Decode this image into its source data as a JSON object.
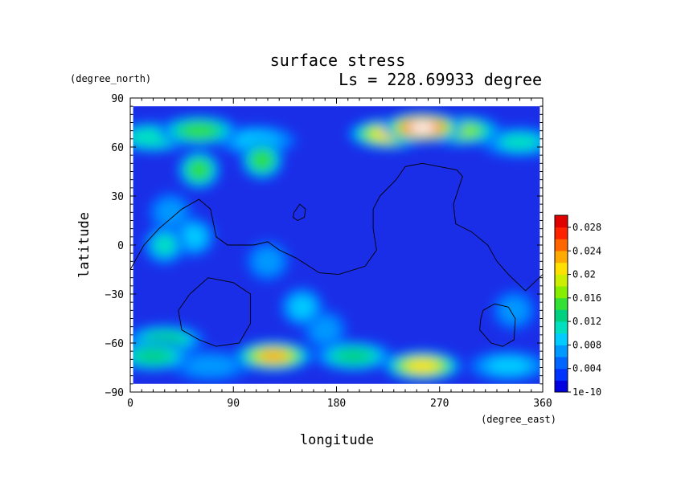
{
  "chart_data": {
    "type": "heatmap",
    "title": "surface stress",
    "subtitle": "Ls = 228.69933 degree",
    "xlabel": "longitude",
    "ylabel": "latitude",
    "x_unit": "(degree_east)",
    "y_unit": "(degree_north)",
    "xlim": [
      0,
      360
    ],
    "ylim": [
      -90,
      90
    ],
    "x_ticks": [
      "0",
      "90",
      "180",
      "270",
      "360"
    ],
    "y_ticks": [
      "90",
      "60",
      "30",
      "0",
      "−30",
      "−60",
      "−90"
    ],
    "x_tick_values": [
      0,
      90,
      180,
      270,
      360
    ],
    "y_tick_values": [
      90,
      60,
      30,
      0,
      -30,
      -60,
      -90
    ],
    "colorbar": {
      "labels": [
        "0.028",
        "0.024",
        "0.02",
        "0.016",
        "0.012",
        "0.008",
        "0.004",
        "1e-10"
      ],
      "min": 0,
      "max": 0.03,
      "colors": [
        "#0000e0",
        "#0033ff",
        "#0066ff",
        "#0099ff",
        "#00ccff",
        "#00e0c0",
        "#00d080",
        "#33e033",
        "#88ee00",
        "#ccee00",
        "#ffe000",
        "#ffaa00",
        "#ff6600",
        "#ff2200",
        "#e00000"
      ]
    },
    "data_extent": {
      "lon": [
        2.5,
        357.5
      ],
      "lat": [
        -85,
        85
      ]
    },
    "hotspots": [
      {
        "lon": 255,
        "lat": 72,
        "value": 0.03
      },
      {
        "lon": 225,
        "lat": 68,
        "value": 0.02
      },
      {
        "lon": 290,
        "lat": 70,
        "value": 0.016
      },
      {
        "lon": 60,
        "lat": 70,
        "value": 0.014
      },
      {
        "lon": 20,
        "lat": 66,
        "value": 0.011
      },
      {
        "lon": 110,
        "lat": 64,
        "value": 0.008
      },
      {
        "lon": 340,
        "lat": 63,
        "value": 0.01
      },
      {
        "lon": 60,
        "lat": 46,
        "value": 0.014
      },
      {
        "lon": 115,
        "lat": 52,
        "value": 0.014
      },
      {
        "lon": 30,
        "lat": 0,
        "value": 0.01
      },
      {
        "lon": 55,
        "lat": 5,
        "value": 0.009
      },
      {
        "lon": 35,
        "lat": 20,
        "value": 0.007
      },
      {
        "lon": 120,
        "lat": -10,
        "value": 0.006
      },
      {
        "lon": 150,
        "lat": -38,
        "value": 0.008
      },
      {
        "lon": 20,
        "lat": -68,
        "value": 0.013
      },
      {
        "lon": 30,
        "lat": -58,
        "value": 0.012
      },
      {
        "lon": 125,
        "lat": -68,
        "value": 0.022
      },
      {
        "lon": 195,
        "lat": -68,
        "value": 0.012
      },
      {
        "lon": 255,
        "lat": -74,
        "value": 0.02
      },
      {
        "lon": 330,
        "lat": -74,
        "value": 0.008
      },
      {
        "lon": 70,
        "lat": -74,
        "value": 0.006
      },
      {
        "lon": 170,
        "lat": -52,
        "value": 0.006
      },
      {
        "lon": 335,
        "lat": -40,
        "value": 0.006
      }
    ],
    "contours": [
      [
        [
          0,
          -15
        ],
        [
          12,
          0
        ],
        [
          25,
          10
        ],
        [
          45,
          22
        ],
        [
          60,
          28
        ],
        [
          70,
          22
        ],
        [
          75,
          5
        ],
        [
          85,
          0
        ],
        [
          108,
          0
        ],
        [
          120,
          2
        ],
        [
          130,
          -3
        ],
        [
          145,
          -8
        ],
        [
          165,
          -17
        ],
        [
          182,
          -18
        ],
        [
          205,
          -13
        ],
        [
          215,
          -3
        ],
        [
          212,
          10
        ],
        [
          212,
          22
        ],
        [
          218,
          30
        ],
        [
          232,
          40
        ],
        [
          240,
          48
        ],
        [
          255,
          50
        ],
        [
          270,
          48
        ],
        [
          285,
          46
        ],
        [
          290,
          42
        ],
        [
          282,
          25
        ],
        [
          284,
          13
        ],
        [
          298,
          8
        ],
        [
          312,
          0
        ],
        [
          320,
          -10
        ],
        [
          330,
          -18
        ],
        [
          345,
          -28
        ],
        [
          360,
          -18
        ]
      ],
      [
        [
          143,
          20
        ],
        [
          148,
          25
        ],
        [
          153,
          22
        ],
        [
          152,
          17
        ],
        [
          146,
          15
        ],
        [
          142,
          17
        ],
        [
          143,
          20
        ]
      ],
      [
        [
          52,
          -30
        ],
        [
          68,
          -20
        ],
        [
          90,
          -23
        ],
        [
          105,
          -30
        ],
        [
          105,
          -48
        ],
        [
          95,
          -60
        ],
        [
          75,
          -62
        ],
        [
          60,
          -58
        ],
        [
          45,
          -52
        ],
        [
          42,
          -40
        ],
        [
          52,
          -30
        ]
      ],
      [
        [
          308,
          -40
        ],
        [
          318,
          -36
        ],
        [
          330,
          -38
        ],
        [
          336,
          -45
        ],
        [
          335,
          -58
        ],
        [
          325,
          -62
        ],
        [
          315,
          -60
        ],
        [
          305,
          -52
        ],
        [
          306,
          -45
        ],
        [
          308,
          -40
        ]
      ]
    ]
  }
}
